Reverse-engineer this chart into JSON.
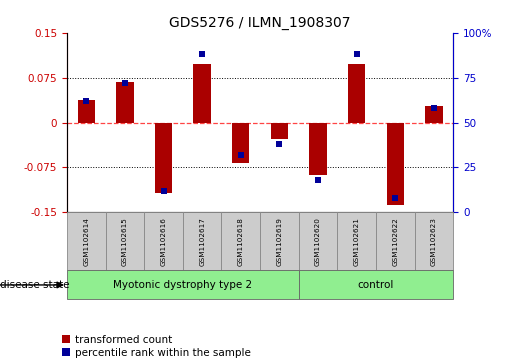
{
  "title": "GDS5276 / ILMN_1908307",
  "samples": [
    "GSM1102614",
    "GSM1102615",
    "GSM1102616",
    "GSM1102617",
    "GSM1102618",
    "GSM1102619",
    "GSM1102620",
    "GSM1102621",
    "GSM1102622",
    "GSM1102623"
  ],
  "transformed_count": [
    0.038,
    0.068,
    -0.118,
    0.098,
    -0.068,
    -0.028,
    -0.088,
    0.098,
    -0.138,
    0.028
  ],
  "percentile_rank": [
    62,
    72,
    12,
    88,
    32,
    38,
    18,
    88,
    8,
    58
  ],
  "groups": [
    {
      "label": "Myotonic dystrophy type 2",
      "start": 0,
      "end": 6,
      "color": "#90EE90"
    },
    {
      "label": "control",
      "start": 6,
      "end": 10,
      "color": "#90EE90"
    }
  ],
  "ylim_left": [
    -0.15,
    0.15
  ],
  "ylim_right": [
    0,
    100
  ],
  "yticks_left": [
    -0.15,
    -0.075,
    0,
    0.075,
    0.15
  ],
  "yticks_right": [
    0,
    25,
    50,
    75,
    100
  ],
  "bar_color": "#AA0000",
  "dot_color": "#000099",
  "zero_line_color": "#FF4444",
  "bg_color": "#FFFFFF",
  "plot_bg": "#FFFFFF",
  "label_bg": "#CCCCCC",
  "disease_state_label": "disease state",
  "legend_tc": "transformed count",
  "legend_pr": "percentile rank within the sample",
  "bar_width": 0.45,
  "left_tick_color": "#CC0000",
  "right_tick_color": "#0000CC"
}
